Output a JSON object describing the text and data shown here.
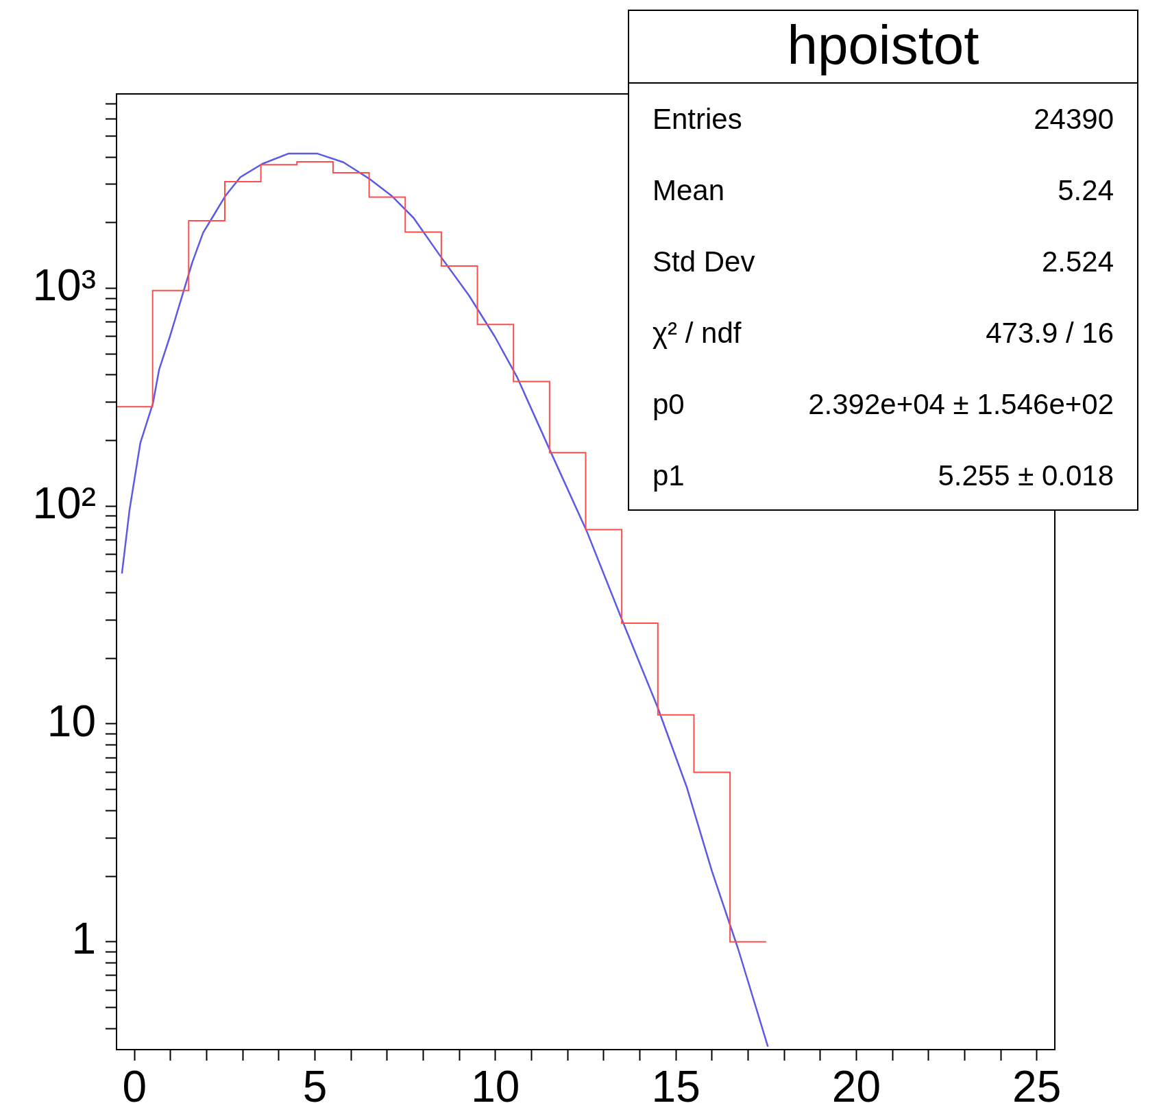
{
  "chart_data": {
    "type": "histogram",
    "bins": [
      -0.5,
      0.5,
      1.5,
      2.5,
      3.5,
      4.5,
      5.5,
      6.5,
      7.5,
      8.5,
      9.5,
      10.5,
      11.5,
      12.5,
      13.5,
      14.5,
      15.5,
      16.5,
      17.5
    ],
    "values": [
      286,
      977,
      2040,
      3085,
      3690,
      3810,
      3390,
      2620,
      1812,
      1265,
      682,
      373,
      176,
      78,
      29,
      11,
      6,
      1
    ],
    "color": "#ff4d4d",
    "series": [
      {
        "type": "line",
        "color": "#5a5ae6",
        "x": [
          -0.35,
          -0.14,
          0.16,
          0.51,
          0.68,
          0.98,
          1.29,
          1.6,
          1.9,
          2.21,
          2.52,
          2.93,
          3.54,
          4.26,
          5.07,
          5.79,
          6.5,
          7.12,
          7.73,
          8.45,
          9.27,
          9.98,
          10.6,
          11.52,
          12.54,
          13.56,
          14.48,
          15.3,
          16.0,
          16.73,
          17.55
        ],
        "values": [
          49,
          96,
          195,
          297,
          423,
          601,
          889,
          1315,
          1800,
          2187,
          2660,
          3235,
          3725,
          4150,
          4150,
          3785,
          3185,
          2660,
          2105,
          1422,
          925,
          601,
          391,
          179,
          76,
          28.6,
          12.09,
          5.135,
          2.108,
          0.9218,
          0.33
        ]
      }
    ],
    "log": true,
    "xlim": [
      -0.5,
      25.5
    ],
    "ylim": [
      0.32,
      7800
    ],
    "xticks": [
      0,
      {
        "value": 1,
        "label": null
      },
      {
        "value": 2,
        "label": null
      },
      {
        "value": 3,
        "label": null
      },
      {
        "value": 4,
        "label": null
      },
      5,
      {
        "value": 6,
        "label": null
      },
      {
        "value": 7,
        "label": null
      },
      {
        "value": 8,
        "label": null
      },
      {
        "value": 9,
        "label": null
      },
      10,
      {
        "value": 11,
        "label": null
      },
      {
        "value": 12,
        "label": null
      },
      {
        "value": 13,
        "label": null
      },
      {
        "value": 14,
        "label": null
      },
      15,
      {
        "value": 16,
        "label": null
      },
      {
        "value": 17,
        "label": null
      },
      {
        "value": 18,
        "label": null
      },
      {
        "value": 19,
        "label": null
      },
      20,
      {
        "value": 21,
        "label": null
      },
      {
        "value": 22,
        "label": null
      },
      {
        "value": 23,
        "label": null
      },
      {
        "value": 24,
        "label": null
      },
      25
    ],
    "yticks": [
      {
        "value": 0.4,
        "label": null
      },
      {
        "value": 0.5,
        "label": null
      },
      {
        "value": 0.6,
        "label": null
      },
      {
        "value": 0.7,
        "label": null
      },
      {
        "value": 0.8,
        "label": null
      },
      {
        "value": 0.9,
        "label": null
      },
      1,
      {
        "value": 2,
        "label": null
      },
      {
        "value": 3,
        "label": null
      },
      {
        "value": 4,
        "label": null
      },
      {
        "value": 5,
        "label": null
      },
      {
        "value": 6,
        "label": null
      },
      {
        "value": 7,
        "label": null
      },
      {
        "value": 8,
        "label": null
      },
      {
        "value": 9,
        "label": null
      },
      10,
      {
        "value": 20,
        "label": null
      },
      {
        "value": 30,
        "label": null
      },
      {
        "value": 40,
        "label": null
      },
      {
        "value": 50,
        "label": null
      },
      {
        "value": 60,
        "label": null
      },
      {
        "value": 70,
        "label": null
      },
      {
        "value": 80,
        "label": null
      },
      {
        "value": 90,
        "label": null
      },
      {
        "value": 100,
        "label": "10²"
      },
      {
        "value": 200,
        "label": null
      },
      {
        "value": 300,
        "label": null
      },
      {
        "value": 400,
        "label": null
      },
      {
        "value": 500,
        "label": null
      },
      {
        "value": 600,
        "label": null
      },
      {
        "value": 700,
        "label": null
      },
      {
        "value": 800,
        "label": null
      },
      {
        "value": 900,
        "label": null
      },
      {
        "value": 1000,
        "label": "10³"
      },
      {
        "value": 2000,
        "label": null
      },
      {
        "value": 3000,
        "label": null
      },
      {
        "value": 4000,
        "label": null
      },
      {
        "value": 5000,
        "label": null
      },
      {
        "value": 6000,
        "label": null
      },
      {
        "value": 7000,
        "label": null
      }
    ],
    "annotations": [
      "hpoistot",
      "Entries",
      "24390",
      "Mean",
      "5.24",
      "Std Dev",
      "2.524",
      "χ² / ndf",
      "473.9 / 16",
      "p0",
      "2.392e+04 ± 1.546e+02",
      "p1",
      "5.255 ± 0.018"
    ]
  }
}
